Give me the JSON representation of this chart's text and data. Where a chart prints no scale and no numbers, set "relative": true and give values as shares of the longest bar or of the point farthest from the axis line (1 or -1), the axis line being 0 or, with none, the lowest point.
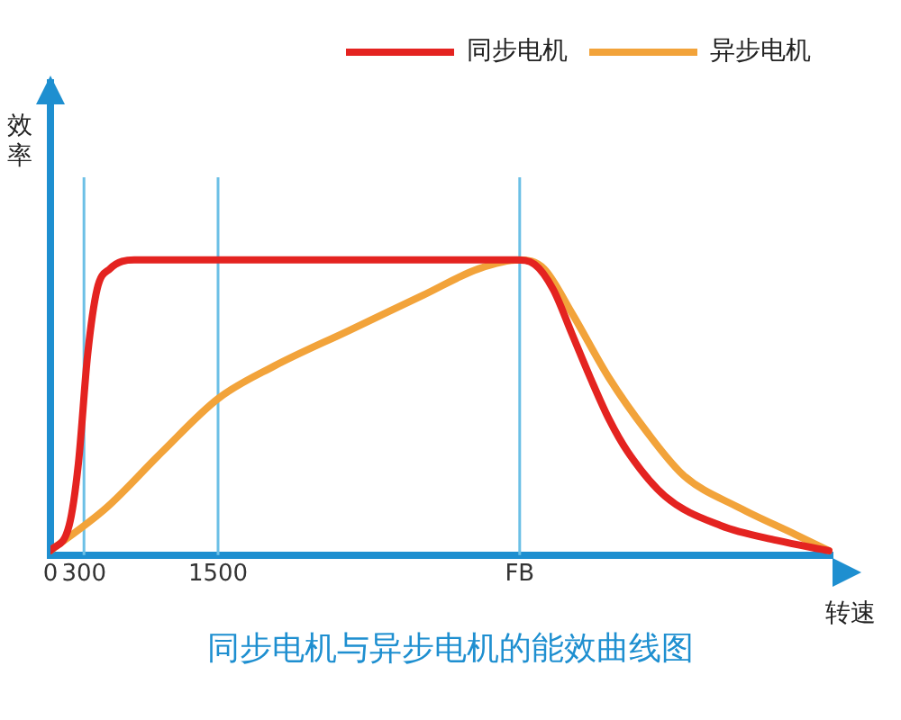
{
  "chart_data": {
    "type": "line",
    "title": "同步电机与异步电机的能效曲线图",
    "xlabel": "转速",
    "ylabel": "效率",
    "relative": true,
    "legend": "top right",
    "marker": "none",
    "line_style": "solid",
    "xlim": [
      0,
      7000
    ],
    "xticks": [
      0,
      300,
      1500,
      {
        "value": 4200,
        "label": "FB"
      }
    ],
    "ref_lines": [
      {
        "axis": "x",
        "value": 300,
        "color": "#6cc0e6"
      },
      {
        "axis": "x",
        "value": 1500,
        "color": "#6cc0e6"
      },
      {
        "axis": "x",
        "value": 4200,
        "color": "#6cc0e6"
      }
    ],
    "series": [
      {
        "name": "同步电机",
        "color": "#e42320",
        "x": [
          0,
          167,
          250,
          333,
          417,
          533,
          750,
          1500,
          4167,
          4333,
          4500,
          4667,
          4833,
          5000,
          5167,
          5500,
          6000,
          6500,
          6967
        ],
        "values": [
          0.015,
          0.1,
          0.31,
          0.68,
          0.9,
          0.97,
          1,
          1,
          1,
          0.985,
          0.9,
          0.75,
          0.6,
          0.46,
          0.35,
          0.2,
          0.1,
          0.05,
          0.015
        ]
      },
      {
        "name": "异步电机",
        "color": "#f2a33a",
        "x": [
          0,
          500,
          1000,
          1500,
          2000,
          2667,
          3333,
          3833,
          4200,
          4417,
          4667,
          5000,
          5333,
          5667,
          6167,
          6667,
          6967
        ],
        "values": [
          0.015,
          0.16,
          0.35,
          0.53,
          0.64,
          0.76,
          0.88,
          0.97,
          1,
          0.97,
          0.82,
          0.6,
          0.42,
          0.27,
          0.16,
          0.07,
          0.015
        ]
      }
    ]
  }
}
